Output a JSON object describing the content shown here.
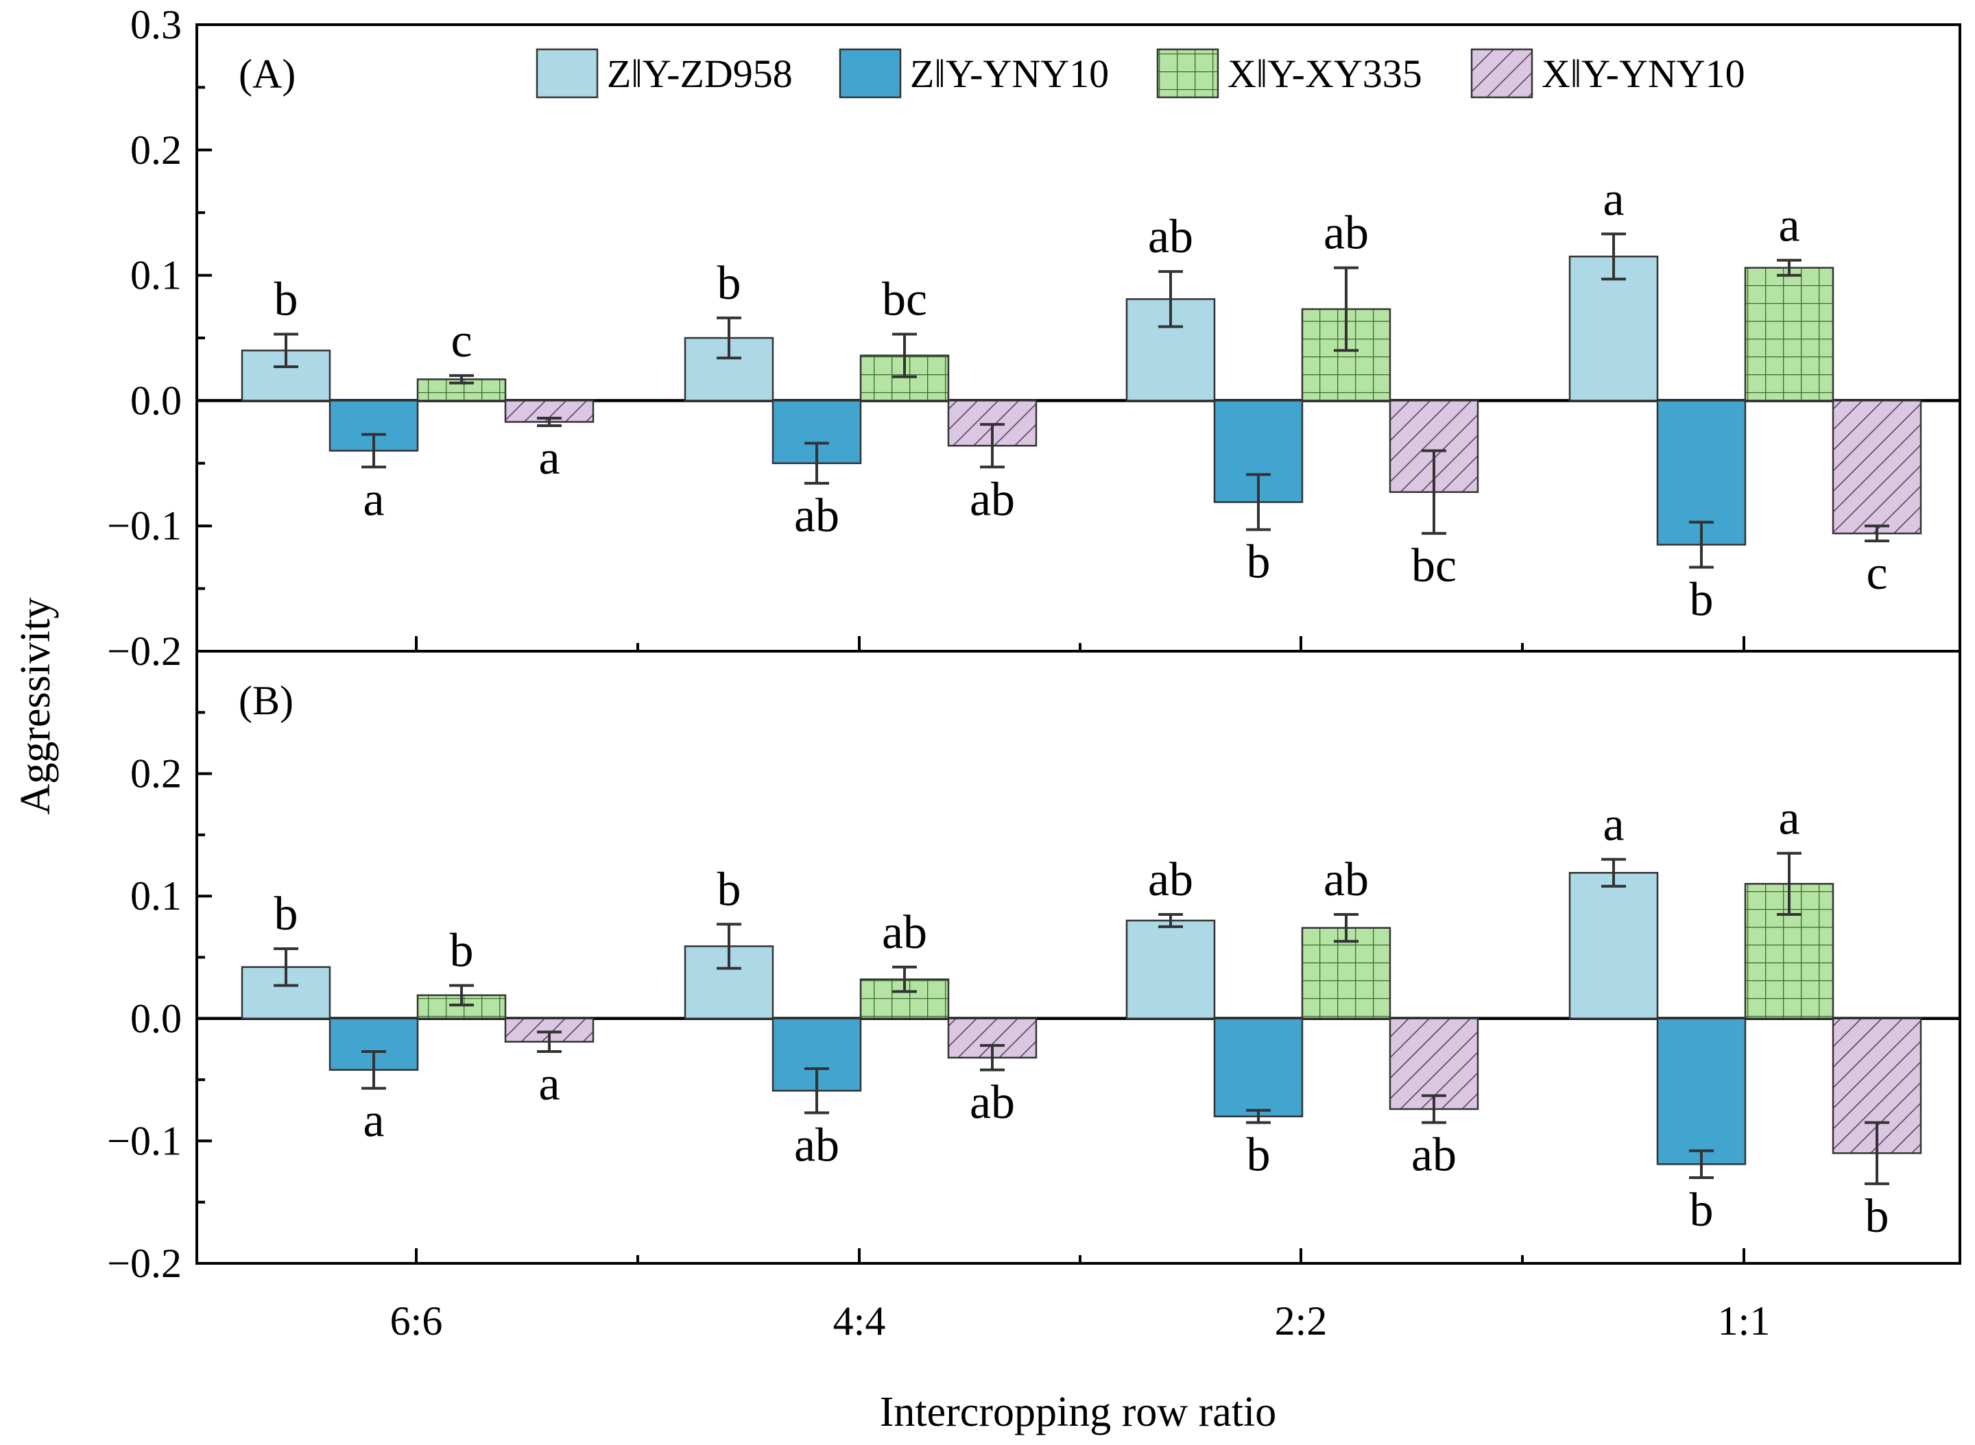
{
  "chart_data": {
    "type": "bar",
    "ylabel": "Aggressivity",
    "xlabel": "Intercropping row ratio",
    "categories": [
      "6:6",
      "4:4",
      "2:2",
      "1:1"
    ],
    "yticks": [
      "0.3",
      "0.2",
      "0.1",
      "0.0",
      "−0.1",
      "−0.2"
    ],
    "legend": [
      {
        "name": "Z‖Y-ZD958",
        "color": "#add8e6",
        "pattern": "solid"
      },
      {
        "name": "Z‖Y-YNY10",
        "color": "#42a5cf",
        "pattern": "solid"
      },
      {
        "name": "X‖Y-XY335",
        "color": "#b5e3a3",
        "pattern": "grid"
      },
      {
        "name": "X‖Y-YNY10",
        "color": "#dcc7e2",
        "pattern": "diagonal"
      }
    ],
    "panels": [
      {
        "label": "(A)",
        "ylim": [
          -0.2,
          0.3
        ],
        "series": [
          {
            "name": "Z‖Y-ZD958",
            "values": [
              0.04,
              0.05,
              0.081,
              0.115
            ],
            "errors": [
              0.013,
              0.016,
              0.022,
              0.018
            ],
            "letters": [
              "b",
              "b",
              "ab",
              "a"
            ]
          },
          {
            "name": "Z‖Y-YNY10",
            "values": [
              -0.04,
              -0.05,
              -0.081,
              -0.115
            ],
            "errors": [
              0.013,
              0.016,
              0.022,
              0.018
            ],
            "letters": [
              "a",
              "ab",
              "b",
              "b"
            ]
          },
          {
            "name": "X‖Y-XY335",
            "values": [
              0.017,
              0.036,
              0.073,
              0.106
            ],
            "errors": [
              0.003,
              0.017,
              0.033,
              0.006
            ],
            "letters": [
              "c",
              "bc",
              "ab",
              "a"
            ]
          },
          {
            "name": "X‖Y-YNY10",
            "values": [
              -0.017,
              -0.036,
              -0.073,
              -0.106
            ],
            "errors": [
              0.003,
              0.017,
              0.033,
              0.006
            ],
            "letters": [
              "a",
              "ab",
              "bc",
              "c"
            ]
          }
        ]
      },
      {
        "label": "(B)",
        "ylim": [
          -0.2,
          0.3
        ],
        "series": [
          {
            "name": "Z‖Y-ZD958",
            "values": [
              0.042,
              0.059,
              0.08,
              0.119
            ],
            "errors": [
              0.015,
              0.018,
              0.005,
              0.011
            ],
            "letters": [
              "b",
              "b",
              "ab",
              "a"
            ]
          },
          {
            "name": "Z‖Y-YNY10",
            "values": [
              -0.042,
              -0.059,
              -0.08,
              -0.119
            ],
            "errors": [
              0.015,
              0.018,
              0.005,
              0.011
            ],
            "letters": [
              "a",
              "ab",
              "b",
              "b"
            ]
          },
          {
            "name": "X‖Y-XY335",
            "values": [
              0.019,
              0.032,
              0.074,
              0.11
            ],
            "errors": [
              0.008,
              0.01,
              0.011,
              0.025
            ],
            "letters": [
              "b",
              "ab",
              "ab",
              "a"
            ]
          },
          {
            "name": "X‖Y-YNY10",
            "values": [
              -0.019,
              -0.032,
              -0.074,
              -0.11
            ],
            "errors": [
              0.008,
              0.01,
              0.011,
              0.025
            ],
            "letters": [
              "a",
              "ab",
              "ab",
              "b"
            ]
          }
        ]
      }
    ]
  }
}
